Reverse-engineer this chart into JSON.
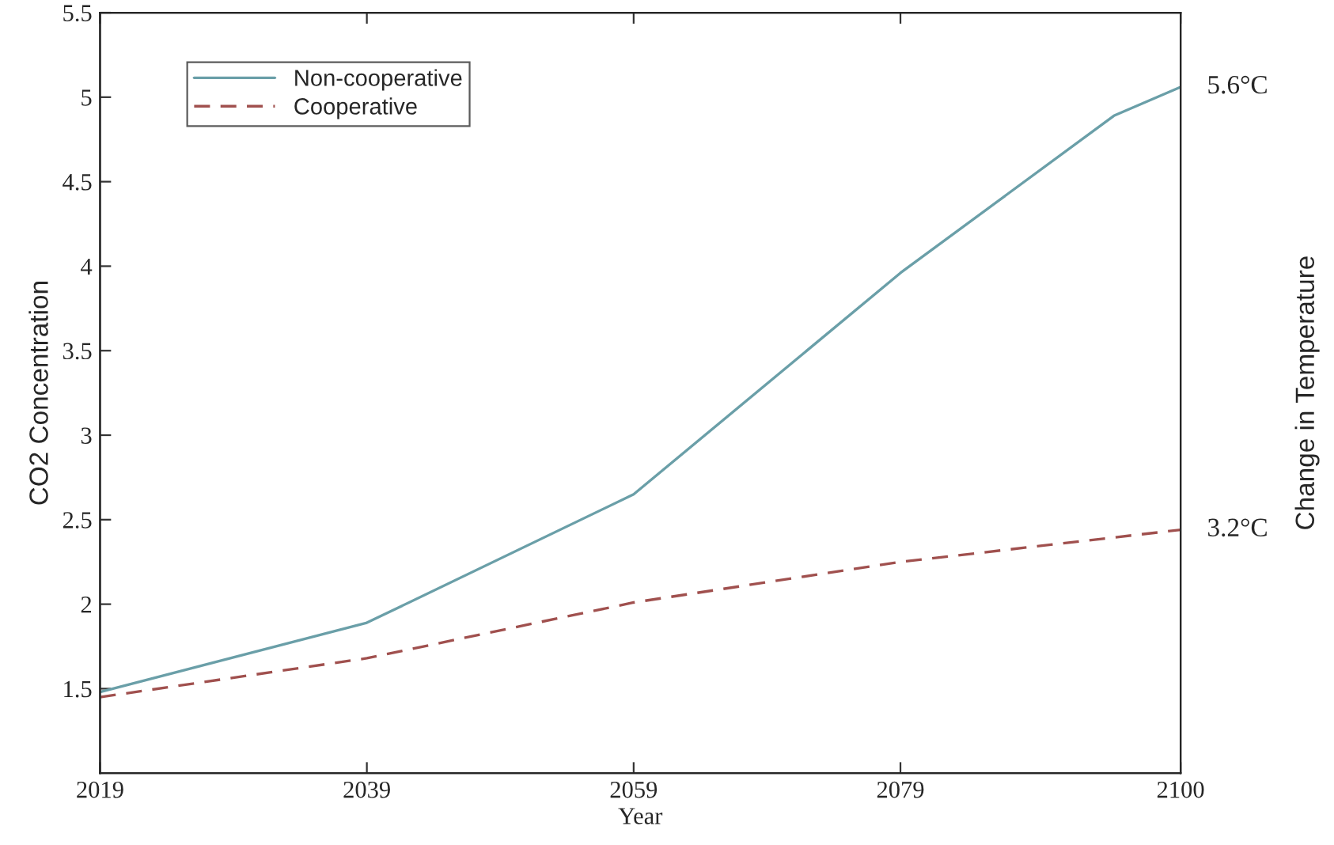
{
  "chart_data": {
    "type": "line",
    "xlabel": "Year",
    "ylabel": "CO2 Concentration",
    "y2label": "Change in Temperature",
    "xlim": [
      2019,
      2100
    ],
    "xticks": [
      2019,
      2039,
      2059,
      2079,
      2100
    ],
    "ylim": [
      1,
      5.5
    ],
    "yticks": [
      1.5,
      2,
      2.5,
      3,
      3.5,
      4,
      4.5,
      5,
      5.5
    ],
    "series": [
      {
        "name": "Non-cooperative",
        "color": "#6a9fa8",
        "line_style": "solid",
        "x": [
          2019,
          2039,
          2059,
          2079,
          2095,
          2100
        ],
        "values": [
          1.48,
          1.89,
          2.65,
          3.96,
          4.89,
          5.06
        ]
      },
      {
        "name": "Cooperative",
        "color": "#a0504e",
        "line_style": "dashed",
        "x": [
          2019,
          2039,
          2059,
          2079,
          2100
        ],
        "values": [
          1.45,
          1.68,
          2.01,
          2.25,
          2.44
        ]
      }
    ],
    "annotations": [
      {
        "text": "5.6°C",
        "x": 2100,
        "y": 5.06
      },
      {
        "text": "3.2°C",
        "x": 2100,
        "y": 2.44
      }
    ],
    "legend": "top left",
    "grid": false,
    "marker": "none"
  }
}
